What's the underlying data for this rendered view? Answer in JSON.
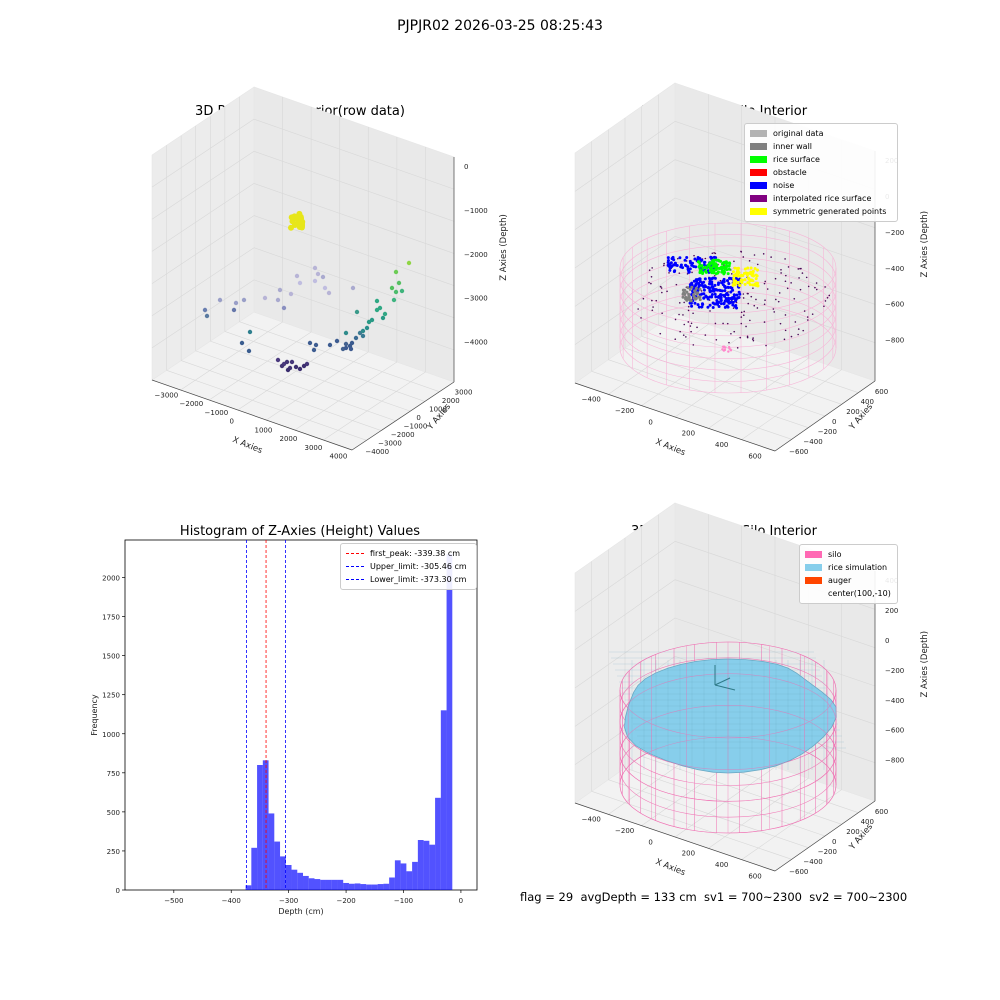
{
  "suptitle": "PJPJR02 2026-03-25 08:25:43",
  "footer": "flag = 29  avgDepth = 133 cm  sv1 = 700~2300  sv2 = 700~2300",
  "chart_data": [
    {
      "type": "scatter",
      "title": "3D Plot of Silo Interior(row data)",
      "xlabel": "X Axies",
      "ylabel": "Y Axies",
      "zlabel": "Z Axies (Depth)",
      "x_ticks": [
        "−3000",
        "−2000",
        "−1000",
        "0",
        "1000",
        "2000",
        "3000",
        "4000"
      ],
      "y_ticks": [
        "−4000",
        "−3000",
        "−2000",
        "−1000",
        "0",
        "1000",
        "2000",
        "3000"
      ],
      "z_ticks": [
        "−4000",
        "−3000",
        "−2000",
        "−1000",
        "0"
      ],
      "grid": true
    },
    {
      "type": "scatter",
      "title": "3D classify of Silo Interior",
      "xlabel": "X Axies",
      "ylabel": "Y Axies",
      "zlabel": "Z Axies (Depth)",
      "x_ticks": [
        "−400",
        "−200",
        "0",
        "200",
        "400",
        "600"
      ],
      "y_ticks": [
        "−600",
        "−400",
        "−200",
        "0",
        "200",
        "400",
        "600"
      ],
      "z_ticks": [
        "−800",
        "−600",
        "−400",
        "−200",
        "0",
        "200"
      ],
      "legend": [
        {
          "label": "original data",
          "color": "#b3b3b3"
        },
        {
          "label": "inner wall",
          "color": "#808080"
        },
        {
          "label": "rice surface",
          "color": "#00ff00"
        },
        {
          "label": "obstacle",
          "color": "#ff0000"
        },
        {
          "label": "noise",
          "color": "#0000ff"
        },
        {
          "label": "interpolated rice surface",
          "color": "#800080"
        },
        {
          "label": "symmetric generated points",
          "color": "#ffff00"
        }
      ],
      "legend_position": "top-right",
      "grid": true
    },
    {
      "type": "bar",
      "title": "Histogram of Z-Axies (Height) Values",
      "xlabel": "Depth (cm)",
      "ylabel": "Frequency",
      "xlim": [
        -585,
        28
      ],
      "ylim": [
        0,
        2240
      ],
      "x_ticks": [
        -500,
        -400,
        -300,
        -200,
        -100,
        0
      ],
      "y_ticks": [
        0,
        250,
        500,
        750,
        1000,
        1250,
        1500,
        1750,
        2000
      ],
      "bar_color": "#0000ff",
      "bins": [
        {
          "x0": -375,
          "x1": -365,
          "value": 30
        },
        {
          "x0": -365,
          "x1": -355,
          "value": 270
        },
        {
          "x0": -355,
          "x1": -345,
          "value": 800
        },
        {
          "x0": -345,
          "x1": -335,
          "value": 830
        },
        {
          "x0": -335,
          "x1": -325,
          "value": 490
        },
        {
          "x0": -325,
          "x1": -315,
          "value": 310
        },
        {
          "x0": -315,
          "x1": -305,
          "value": 215
        },
        {
          "x0": -305,
          "x1": -295,
          "value": 160
        },
        {
          "x0": -295,
          "x1": -285,
          "value": 130
        },
        {
          "x0": -285,
          "x1": -275,
          "value": 110
        },
        {
          "x0": -275,
          "x1": -265,
          "value": 90
        },
        {
          "x0": -265,
          "x1": -255,
          "value": 75
        },
        {
          "x0": -255,
          "x1": -245,
          "value": 70
        },
        {
          "x0": -245,
          "x1": -235,
          "value": 65
        },
        {
          "x0": -235,
          "x1": -225,
          "value": 65
        },
        {
          "x0": -225,
          "x1": -215,
          "value": 65
        },
        {
          "x0": -215,
          "x1": -205,
          "value": 65
        },
        {
          "x0": -205,
          "x1": -195,
          "value": 45
        },
        {
          "x0": -195,
          "x1": -185,
          "value": 40
        },
        {
          "x0": -185,
          "x1": -175,
          "value": 42
        },
        {
          "x0": -175,
          "x1": -165,
          "value": 38
        },
        {
          "x0": -165,
          "x1": -155,
          "value": 35
        },
        {
          "x0": -155,
          "x1": -145,
          "value": 35
        },
        {
          "x0": -145,
          "x1": -135,
          "value": 38
        },
        {
          "x0": -135,
          "x1": -125,
          "value": 40
        },
        {
          "x0": -125,
          "x1": -115,
          "value": 80
        },
        {
          "x0": -115,
          "x1": -105,
          "value": 190
        },
        {
          "x0": -105,
          "x1": -95,
          "value": 170
        },
        {
          "x0": -95,
          "x1": -85,
          "value": 120
        },
        {
          "x0": -85,
          "x1": -75,
          "value": 180
        },
        {
          "x0": -75,
          "x1": -65,
          "value": 320
        },
        {
          "x0": -65,
          "x1": -55,
          "value": 315
        },
        {
          "x0": -55,
          "x1": -45,
          "value": 290
        },
        {
          "x0": -45,
          "x1": -35,
          "value": 590
        },
        {
          "x0": -35,
          "x1": -25,
          "value": 1150
        },
        {
          "x0": -25,
          "x1": -15,
          "value": 2150
        },
        {
          "x0": -15,
          "x1": -5,
          "value": 0
        },
        {
          "x0": -5,
          "x1": 5,
          "value": 0
        }
      ],
      "vlines": [
        {
          "x": -339.38,
          "label": "first_peak: -339.38 cm",
          "color": "#ff0000"
        },
        {
          "x": -305.46,
          "label": "Upper_limit: -305.46 cm",
          "color": "#0000ff"
        },
        {
          "x": -373.3,
          "label": "Lower_limit: -373.30 cm",
          "color": "#0000ff"
        }
      ],
      "legend_position": "top-right"
    },
    {
      "type": "scatter",
      "title": "3D simulation of Silo Interior",
      "xlabel": "X Axies",
      "ylabel": "Y Axies",
      "zlabel": "Z Axies (Depth)",
      "x_ticks": [
        "−400",
        "−200",
        "0",
        "200",
        "400",
        "600"
      ],
      "y_ticks": [
        "−600",
        "−400",
        "−200",
        "0",
        "200",
        "400",
        "600"
      ],
      "z_ticks": [
        "−800",
        "−600",
        "−400",
        "−200",
        "0",
        "200",
        "400"
      ],
      "legend": [
        {
          "label": "silo",
          "color": "#ff69b4"
        },
        {
          "label": "rice simulation",
          "color": "#87ceeb"
        },
        {
          "label": "auger",
          "color": "#ff4500"
        },
        {
          "label": "center(100,-10)",
          "color": ""
        }
      ],
      "legend_position": "top-right",
      "grid": true
    }
  ]
}
